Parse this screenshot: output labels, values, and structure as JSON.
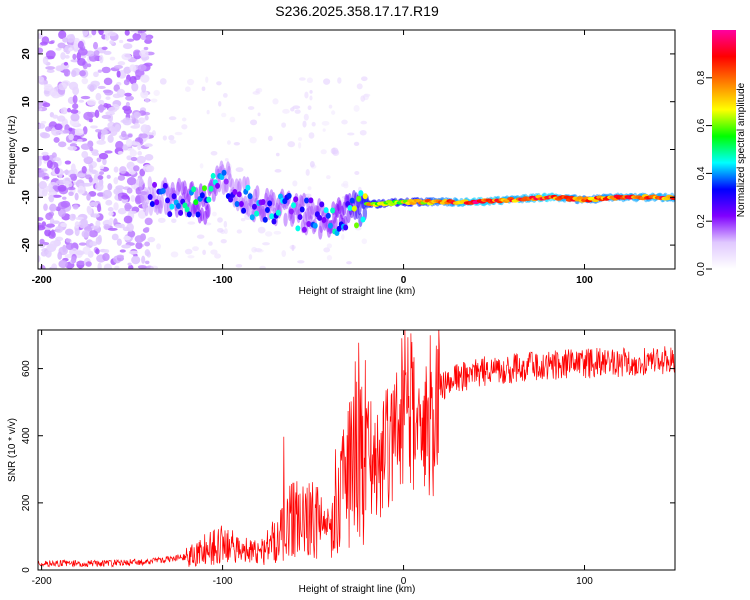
{
  "title": "S236.2025.358.17.17.R19",
  "chart_data": [
    {
      "type": "heatmap",
      "title": "S236.2025.358.17.17.R19",
      "xlabel": "Height of straight line (km)",
      "ylabel": "Frequency (Hz)",
      "xlim": [
        -202,
        150
      ],
      "ylim": [
        -25,
        25
      ],
      "xticks": [
        -200,
        -100,
        0,
        100
      ],
      "yticks": [
        20,
        10,
        0,
        -10,
        -20
      ],
      "colorbar": {
        "label": "Normalized spectral amplitude",
        "range": [
          0.0,
          1.0
        ],
        "ticks": [
          0.0,
          0.2,
          0.4,
          0.6,
          0.8
        ],
        "colormap": [
          "#ffffff",
          "#e0c8ff",
          "#8000ff",
          "#0000ff",
          "#00ffff",
          "#00ff00",
          "#ffff00",
          "#ff8000",
          "#ff0000",
          "#ff00a0"
        ]
      },
      "track": [
        {
          "x": -140,
          "f": -9.5,
          "amp": 0.3
        },
        {
          "x": -120,
          "f": -10.5,
          "amp": 0.45
        },
        {
          "x": -110,
          "f": -11.5,
          "amp": 0.5
        },
        {
          "x": -100,
          "f": -6,
          "amp": 0.35
        },
        {
          "x": -90,
          "f": -9,
          "amp": 0.35
        },
        {
          "x": -80,
          "f": -12,
          "amp": 0.4
        },
        {
          "x": -70,
          "f": -12.5,
          "amp": 0.4
        },
        {
          "x": -60,
          "f": -13,
          "amp": 0.4
        },
        {
          "x": -50,
          "f": -14,
          "amp": 0.4
        },
        {
          "x": -40,
          "f": -15,
          "amp": 0.45
        },
        {
          "x": -30,
          "f": -13,
          "amp": 0.55
        },
        {
          "x": -20,
          "f": -11.5,
          "amp": 0.75
        },
        {
          "x": 0,
          "f": -11,
          "amp": 0.7
        },
        {
          "x": 20,
          "f": -11,
          "amp": 0.85
        },
        {
          "x": 40,
          "f": -11,
          "amp": 0.95
        },
        {
          "x": 60,
          "f": -10.5,
          "amp": 0.9
        },
        {
          "x": 80,
          "f": -10,
          "amp": 0.95
        },
        {
          "x": 100,
          "f": -10.5,
          "amp": 0.85
        },
        {
          "x": 120,
          "f": -10,
          "amp": 0.9
        },
        {
          "x": 150,
          "f": -10,
          "amp": 0.9
        }
      ]
    },
    {
      "type": "line",
      "xlabel": "Height of straight line (km)",
      "ylabel": "SNR (10 * v/v)",
      "xlim": [
        -202,
        150
      ],
      "ylim": [
        0,
        715
      ],
      "xticks": [
        -200,
        -100,
        0,
        100
      ],
      "yticks": [
        0,
        200,
        400,
        600
      ],
      "color": "#ff0000",
      "series": [
        {
          "name": "SNR",
          "x": [
            -202,
            -180,
            -160,
            -140,
            -120,
            -110,
            -100,
            -90,
            -80,
            -70,
            -60,
            -50,
            -40,
            -35,
            -30,
            -25,
            -20,
            -15,
            -10,
            -5,
            0,
            5,
            10,
            15,
            20,
            30,
            40,
            60,
            80,
            100,
            120,
            150
          ],
          "y": [
            20,
            20,
            20,
            25,
            40,
            60,
            75,
            60,
            50,
            90,
            160,
            150,
            110,
            200,
            300,
            380,
            350,
            300,
            340,
            420,
            470,
            460,
            350,
            460,
            540,
            570,
            590,
            600,
            610,
            615,
            620,
            625
          ]
        }
      ]
    }
  ]
}
